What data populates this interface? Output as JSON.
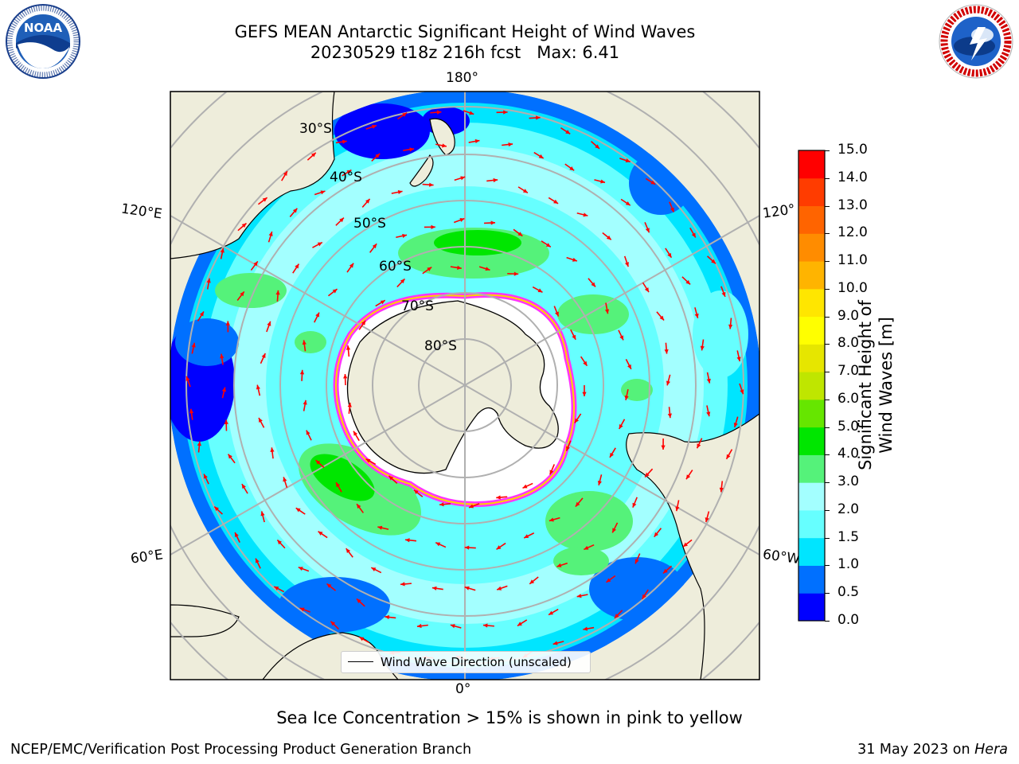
{
  "title": {
    "line1": "GEFS MEAN Antarctic Significant Height of Wind Waves",
    "line2": "20230529 t18z 216h fcst   Max: 6.41"
  },
  "logos": {
    "left": "NOAA",
    "left_ring": "NATIONAL OCEANIC AND ATMOSPHERIC ADMINISTRATION · U.S. DEPARTMENT OF COMMERCE",
    "right_ring": "NATIONAL WEATHER SERVICE"
  },
  "map": {
    "longitude_labels": {
      "top": "180°",
      "bottom": "0°",
      "upper_left": "120°E",
      "upper_right": "120°",
      "lower_left": "60°E",
      "lower_right": "60°W"
    },
    "latitude_labels": [
      "30°S",
      "40°S",
      "50°S",
      "60°S",
      "70°S",
      "80°S"
    ],
    "legend": "Wind Wave Direction (unscaled)",
    "colors": {
      "land": "#eeeddb",
      "sea_ice": "#ffffff",
      "ice_edge": "#ff33ff",
      "arrow": "#ff0000",
      "grid": "#b0b0b0"
    }
  },
  "colorbar": {
    "label": "Significant Height of Wind Waves [m]",
    "ticks": [
      "0.0",
      "0.5",
      "1.0",
      "1.5",
      "2.0",
      "3.0",
      "4.0",
      "5.0",
      "6.0",
      "7.0",
      "8.0",
      "9.0",
      "10.0",
      "11.0",
      "12.0",
      "13.0",
      "14.0",
      "15.0"
    ],
    "colors": [
      "#0000ff",
      "#0070ff",
      "#00e5ff",
      "#66ffff",
      "#a3ffff",
      "#55f27a",
      "#00e600",
      "#66e600",
      "#bfe600",
      "#e6e600",
      "#ffff00",
      "#ffe600",
      "#ffb400",
      "#ff8c00",
      "#ff6400",
      "#ff3c00",
      "#ff0000"
    ]
  },
  "note": "Sea Ice Concentration > 15% is shown in pink to yellow",
  "footer": {
    "left": "NCEP/EMC/Verification Post Processing Product Generation Branch",
    "date": "31 May 2023 on ",
    "machine": "Hera"
  }
}
